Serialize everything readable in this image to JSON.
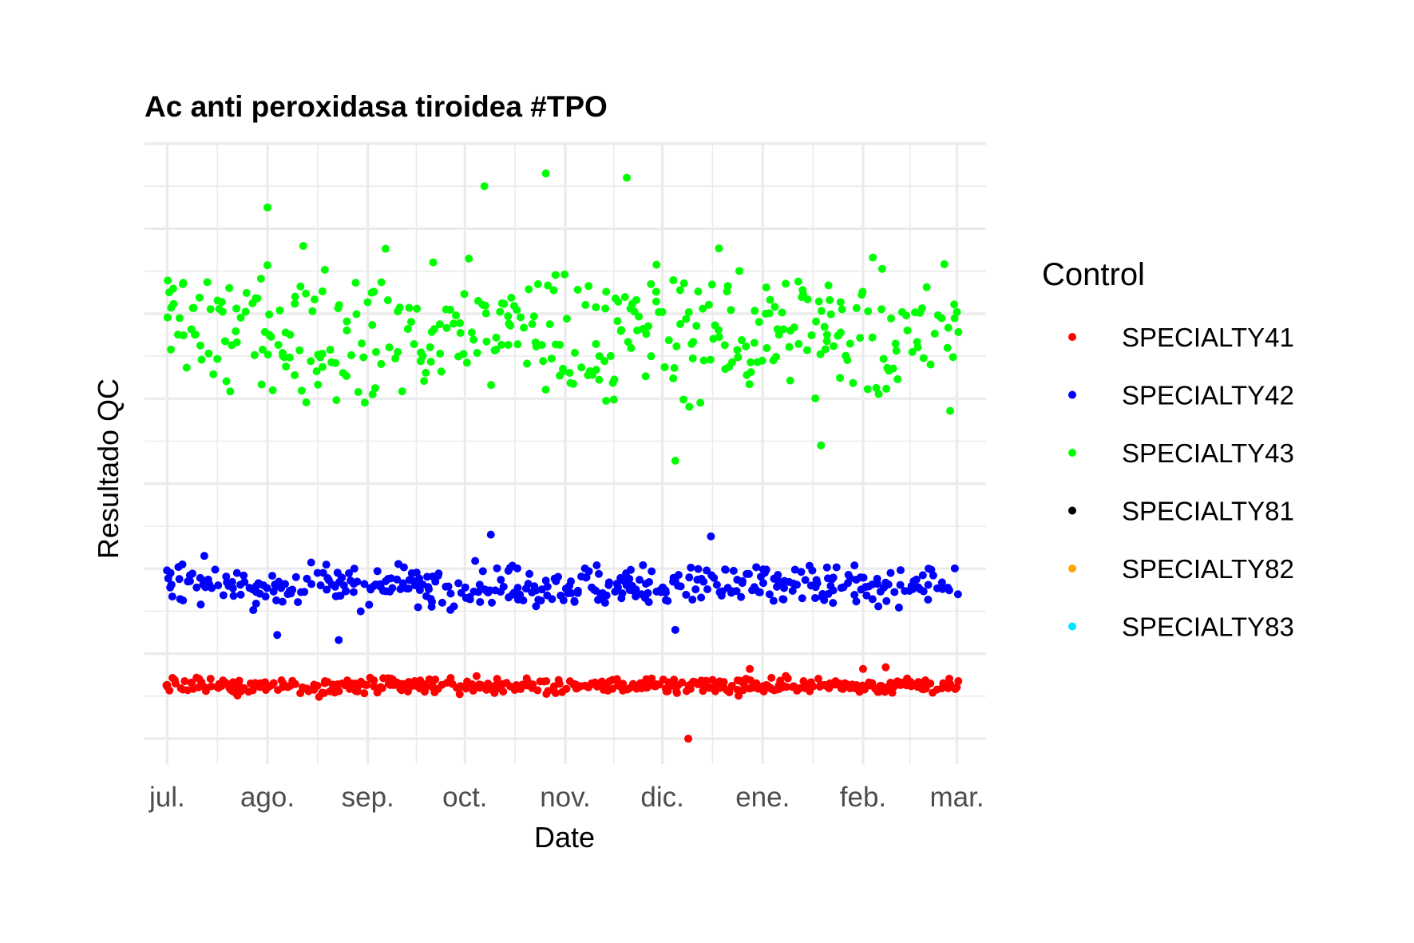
{
  "chart_data": {
    "type": "scatter",
    "title": "Ac anti peroxidasa tiroidea #TPO",
    "xlabel": "Date",
    "ylabel": "Resultado QC",
    "x_axis": {
      "type": "date",
      "range": [
        "2023-06-24",
        "2024-03-10"
      ],
      "ticks": [
        {
          "date": "2023-07-01",
          "label": "jul."
        },
        {
          "date": "2023-08-01",
          "label": "ago."
        },
        {
          "date": "2023-09-01",
          "label": "sep."
        },
        {
          "date": "2023-10-01",
          "label": "oct."
        },
        {
          "date": "2023-11-01",
          "label": "nov."
        },
        {
          "date": "2023-12-01",
          "label": "dic."
        },
        {
          "date": "2024-01-01",
          "label": "ene."
        },
        {
          "date": "2024-02-01",
          "label": "feb."
        },
        {
          "date": "2024-03-01",
          "label": "mar."
        }
      ]
    },
    "y_axis": {
      "range": [
        -0.3,
        7.0
      ],
      "grid_values": [
        0,
        1,
        2,
        3,
        4,
        5,
        6,
        7
      ],
      "tick_labels_shown": false
    },
    "grid": true,
    "legend": {
      "title": "Control",
      "position": "right"
    },
    "series": [
      {
        "name": "SPECIALTY41",
        "color": "#ff0000",
        "center": 0.62,
        "spread": 0.045,
        "outliers": [
          {
            "date": "2023-12-09",
            "y": 0.0
          },
          {
            "date": "2023-12-28",
            "y": 0.82
          },
          {
            "date": "2024-02-01",
            "y": 0.82
          },
          {
            "date": "2024-02-08",
            "y": 0.84
          }
        ]
      },
      {
        "name": "SPECIALTY42",
        "color": "#0000ff",
        "center": 1.8,
        "spread": 0.12,
        "outliers": [
          {
            "date": "2023-08-04",
            "y": 1.22
          },
          {
            "date": "2023-08-23",
            "y": 1.16
          },
          {
            "date": "2023-12-05",
            "y": 1.28
          },
          {
            "date": "2023-10-09",
            "y": 2.4
          },
          {
            "date": "2023-12-16",
            "y": 2.38
          }
        ]
      },
      {
        "name": "SPECIALTY43",
        "color": "#00ff00",
        "center": 4.8,
        "spread": 0.42,
        "outliers": [
          {
            "date": "2023-12-05",
            "y": 3.27
          },
          {
            "date": "2024-01-19",
            "y": 3.45
          },
          {
            "date": "2023-10-07",
            "y": 6.5
          },
          {
            "date": "2023-10-26",
            "y": 6.65
          },
          {
            "date": "2023-11-20",
            "y": 6.6
          },
          {
            "date": "2023-08-01",
            "y": 6.25
          }
        ]
      },
      {
        "name": "SPECIALTY81",
        "color": "#000000"
      },
      {
        "name": "SPECIALTY82",
        "color": "#ffa500"
      },
      {
        "name": "SPECIALTY83",
        "color": "#00e5ff"
      }
    ]
  }
}
